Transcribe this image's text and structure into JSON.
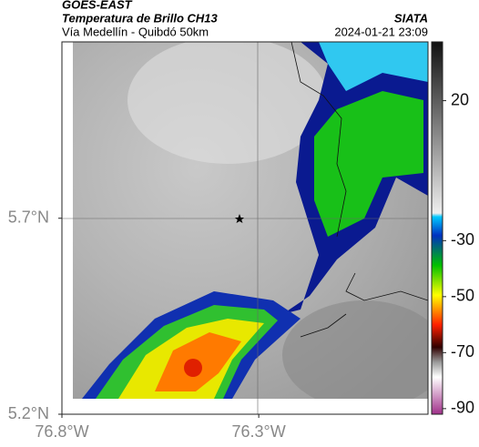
{
  "header": {
    "title": "GOES-EAST",
    "subtitle": "Temperatura de Brillo CH13",
    "source": "SIATA",
    "route": "Vía Medellín - Quibdó 50km",
    "timestamp": "2024-01-21 23:09"
  },
  "map": {
    "ylim": [
      5.2,
      6.15
    ],
    "xlim": [
      -76.8,
      -75.87
    ],
    "yticks": [
      {
        "value": 5.7,
        "label": "5.7°N"
      },
      {
        "value": 5.2,
        "label": "5.2°N"
      }
    ],
    "xticks": [
      {
        "value": -76.8,
        "label": "76.8°W"
      },
      {
        "value": -76.3,
        "label": "76.3°W"
      }
    ]
  },
  "colorbar": {
    "lim": [
      -92,
      41
    ],
    "ticks": [
      20,
      -30,
      -50,
      -70,
      -90
    ]
  }
}
